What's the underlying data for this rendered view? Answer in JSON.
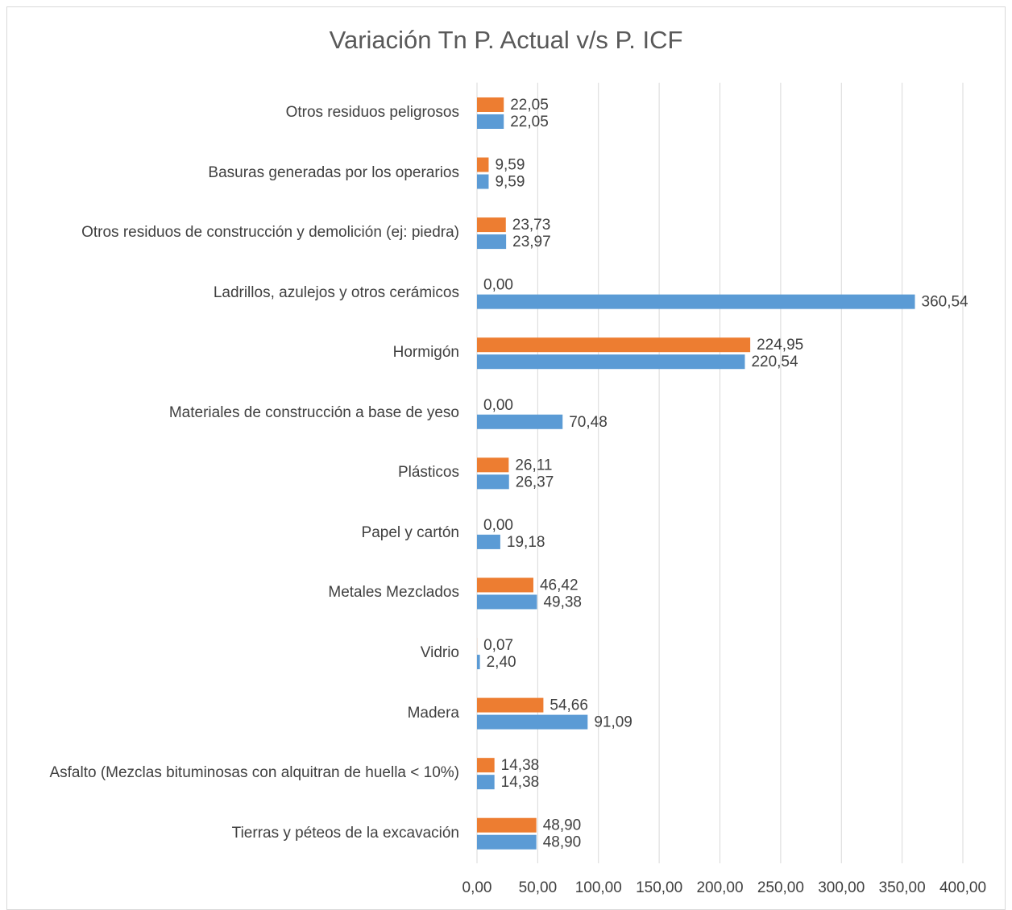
{
  "chart_data": {
    "type": "bar",
    "orientation": "horizontal",
    "title": "Variación Tn P. Actual v/s P. ICF",
    "categories": [
      "Otros residuos peligrosos",
      "Basuras generadas por los operarios",
      "Otros residuos de construcción y demolición (ej: piedra)",
      "Ladrillos, azulejos y otros cerámicos",
      "Hormigón",
      "Materiales de construcción a base de yeso",
      "Plásticos",
      "Papel y cartón",
      "Metales Mezclados",
      "Vidrio",
      "Madera",
      "Asfalto (Mezclas bituminosas con alquitran de huella < 10%)",
      "Tierras y péteos de la excavación"
    ],
    "series": [
      {
        "color": "#ed7d31",
        "values": [
          22.05,
          9.59,
          23.73,
          0.0,
          224.95,
          0.0,
          26.11,
          0.0,
          46.42,
          0.07,
          54.66,
          14.38,
          48.9
        ],
        "value_labels": [
          "22,05",
          "9,59",
          "23,73",
          "0,00",
          "224,95",
          "0,00",
          "26,11",
          "0,00",
          "46,42",
          "0,07",
          "54,66",
          "14,38",
          "48,90"
        ]
      },
      {
        "color": "#5b9bd5",
        "values": [
          22.05,
          9.59,
          23.97,
          360.54,
          220.54,
          70.48,
          26.37,
          19.18,
          49.38,
          2.4,
          91.09,
          14.38,
          48.9
        ],
        "value_labels": [
          "22,05",
          "9,59",
          "23,97",
          "360,54",
          "220,54",
          "70,48",
          "26,37",
          "19,18",
          "49,38",
          "2,40",
          "91,09",
          "14,38",
          "48,90"
        ]
      }
    ],
    "xlim": [
      0,
      400
    ],
    "xticks": [
      {
        "value": 0,
        "label": "0,00"
      },
      {
        "value": 50,
        "label": "50,00"
      },
      {
        "value": 100,
        "label": "100,00"
      },
      {
        "value": 150,
        "label": "150,00"
      },
      {
        "value": 200,
        "label": "200,00"
      },
      {
        "value": 250,
        "label": "250,00"
      },
      {
        "value": 300,
        "label": "300,00"
      },
      {
        "value": 350,
        "label": "350,00"
      },
      {
        "value": 400,
        "label": "400,00"
      }
    ],
    "grid": true
  }
}
